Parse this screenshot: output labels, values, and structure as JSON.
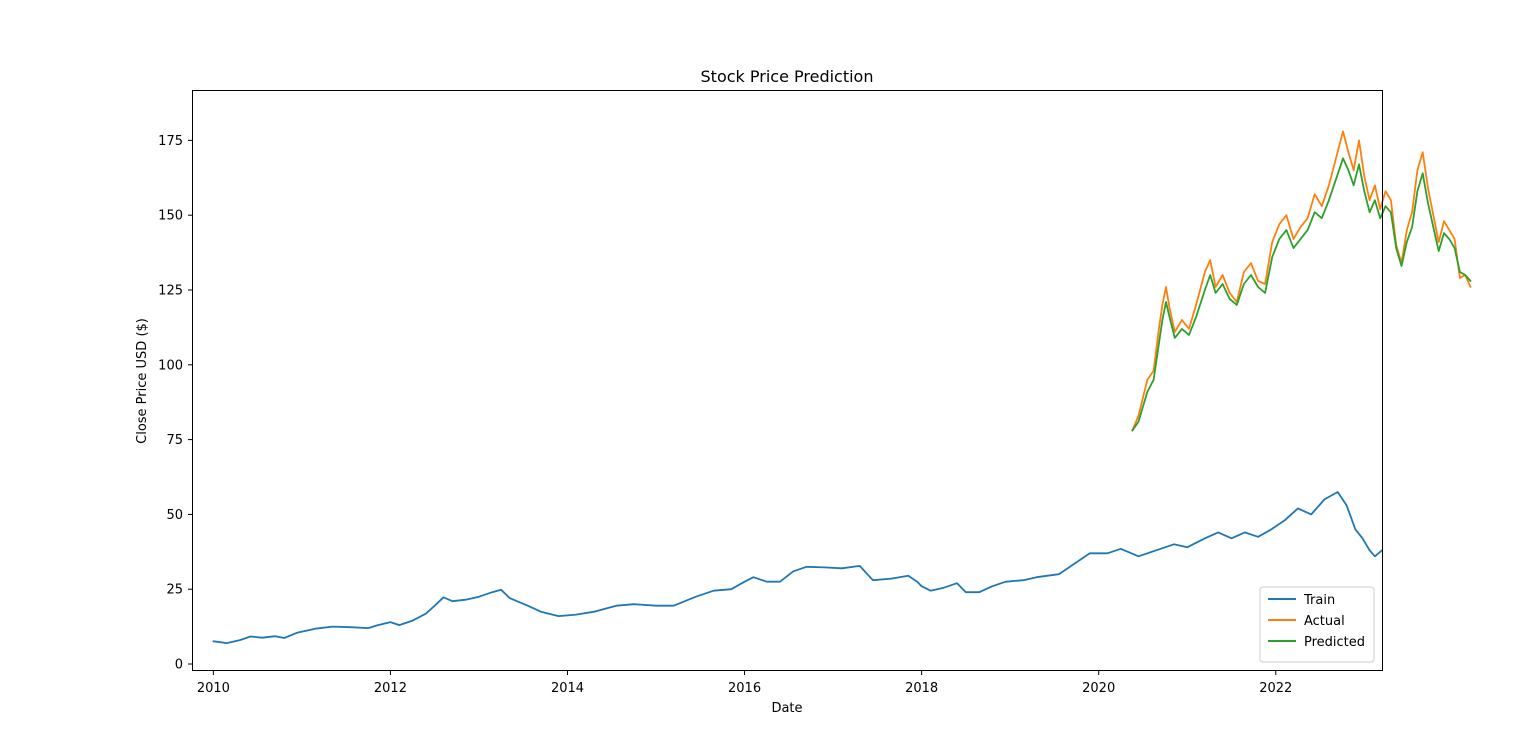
{
  "chart_data": {
    "type": "line",
    "title": "Stock Price Prediction",
    "xlabel": "Date",
    "ylabel": "Close Price USD ($)",
    "xlim": [
      2009.77,
      2023.2
    ],
    "ylim": [
      -2,
      191.5
    ],
    "xticks": [
      2010,
      2012,
      2014,
      2016,
      2018,
      2020,
      2022
    ],
    "yticks": [
      0,
      25,
      50,
      75,
      100,
      125,
      150,
      175
    ],
    "grid": false,
    "legend_position": "lower-right",
    "series": [
      {
        "name": "Train",
        "color": "#1f77b4",
        "points": [
          [
            2010.0,
            7.6
          ],
          [
            2010.08,
            7.3
          ],
          [
            2010.15,
            7.0
          ],
          [
            2010.3,
            8.0
          ],
          [
            2010.42,
            9.2
          ],
          [
            2010.55,
            8.8
          ],
          [
            2010.7,
            9.3
          ],
          [
            2010.8,
            8.7
          ],
          [
            2010.95,
            10.5
          ],
          [
            2011.15,
            11.8
          ],
          [
            2011.35,
            12.5
          ],
          [
            2011.55,
            12.3
          ],
          [
            2011.75,
            12.0
          ],
          [
            2011.85,
            12.9
          ],
          [
            2012.0,
            14.0
          ],
          [
            2012.1,
            13.0
          ],
          [
            2012.25,
            14.5
          ],
          [
            2012.4,
            16.8
          ],
          [
            2012.5,
            19.5
          ],
          [
            2012.6,
            22.3
          ],
          [
            2012.7,
            21.0
          ],
          [
            2012.85,
            21.5
          ],
          [
            2013.0,
            22.5
          ],
          [
            2013.15,
            24.0
          ],
          [
            2013.25,
            24.8
          ],
          [
            2013.35,
            22.0
          ],
          [
            2013.55,
            19.5
          ],
          [
            2013.7,
            17.5
          ],
          [
            2013.9,
            16.0
          ],
          [
            2014.1,
            16.5
          ],
          [
            2014.3,
            17.5
          ],
          [
            2014.55,
            19.5
          ],
          [
            2014.75,
            20.0
          ],
          [
            2015.0,
            19.5
          ],
          [
            2015.2,
            19.5
          ],
          [
            2015.45,
            22.5
          ],
          [
            2015.65,
            24.5
          ],
          [
            2015.85,
            25.0
          ],
          [
            2016.0,
            27.5
          ],
          [
            2016.1,
            29.0
          ],
          [
            2016.25,
            27.5
          ],
          [
            2016.4,
            27.5
          ],
          [
            2016.55,
            31.0
          ],
          [
            2016.7,
            32.5
          ],
          [
            2016.9,
            32.3
          ],
          [
            2017.1,
            32.0
          ],
          [
            2017.3,
            32.8
          ],
          [
            2017.45,
            28.0
          ],
          [
            2017.65,
            28.5
          ],
          [
            2017.85,
            29.5
          ],
          [
            2017.95,
            27.5
          ],
          [
            2018.0,
            26.0
          ],
          [
            2018.1,
            24.5
          ],
          [
            2018.25,
            25.5
          ],
          [
            2018.4,
            27.0
          ],
          [
            2018.5,
            24.0
          ],
          [
            2018.65,
            24.0
          ],
          [
            2018.8,
            26.0
          ],
          [
            2018.95,
            27.5
          ],
          [
            2019.15,
            28.0
          ],
          [
            2019.3,
            29.0
          ],
          [
            2019.55,
            30.0
          ],
          [
            2019.75,
            34.0
          ],
          [
            2019.9,
            37.0
          ],
          [
            2020.1,
            37.0
          ],
          [
            2020.25,
            38.5
          ],
          [
            2020.45,
            36.0
          ],
          [
            2020.65,
            38.0
          ],
          [
            2020.85,
            40.0
          ],
          [
            2021.0,
            39.0
          ],
          [
            2021.2,
            42.0
          ],
          [
            2021.35,
            44.0
          ],
          [
            2021.5,
            42.0
          ],
          [
            2021.65,
            44.0
          ],
          [
            2021.8,
            42.5
          ],
          [
            2021.95,
            45.0
          ],
          [
            2022.1,
            48.0
          ],
          [
            2022.25,
            52.0
          ],
          [
            2022.4,
            50.0
          ],
          [
            2022.55,
            55.0
          ],
          [
            2022.7,
            57.5
          ],
          [
            2022.8,
            53.0
          ],
          [
            2022.9,
            45.0
          ],
          [
            2022.98,
            42.0
          ],
          [
            2023.06,
            38.0
          ],
          [
            2023.12,
            36.0
          ],
          [
            2023.2,
            38.0
          ]
        ]
      },
      {
        "name": "Actual",
        "color": "#ff7f0e",
        "points": [
          [
            2020.38,
            78.0
          ],
          [
            2020.45,
            83.0
          ],
          [
            2020.55,
            95.0
          ],
          [
            2020.62,
            98.0
          ],
          [
            2020.68,
            112.0
          ],
          [
            2020.72,
            120.0
          ],
          [
            2020.76,
            126.0
          ],
          [
            2020.8,
            119.0
          ],
          [
            2020.86,
            111.0
          ],
          [
            2020.94,
            115.0
          ],
          [
            2021.02,
            112.0
          ],
          [
            2021.1,
            120.0
          ],
          [
            2021.2,
            131.0
          ],
          [
            2021.26,
            135.0
          ],
          [
            2021.32,
            126.0
          ],
          [
            2021.4,
            130.0
          ],
          [
            2021.48,
            124.0
          ],
          [
            2021.56,
            121.0
          ],
          [
            2021.64,
            131.0
          ],
          [
            2021.72,
            134.0
          ],
          [
            2021.8,
            128.0
          ],
          [
            2021.88,
            127.0
          ],
          [
            2021.96,
            141.0
          ],
          [
            2022.04,
            147.0
          ],
          [
            2022.12,
            150.0
          ],
          [
            2022.2,
            142.0
          ],
          [
            2022.28,
            146.0
          ],
          [
            2022.36,
            149.0
          ],
          [
            2022.44,
            157.0
          ],
          [
            2022.52,
            153.0
          ],
          [
            2022.6,
            160.0
          ],
          [
            2022.68,
            169.0
          ],
          [
            2022.76,
            178.0
          ],
          [
            2022.82,
            171.0
          ],
          [
            2022.88,
            165.0
          ],
          [
            2022.94,
            175.0
          ],
          [
            2023.0,
            163.0
          ],
          [
            2023.06,
            155.0
          ],
          [
            2023.12,
            160.0
          ],
          [
            2023.18,
            152.0
          ],
          [
            2023.24,
            158.0
          ],
          [
            2023.3,
            155.0
          ],
          [
            2023.36,
            140.0
          ],
          [
            2023.42,
            134.0
          ],
          [
            2023.48,
            145.0
          ],
          [
            2023.54,
            151.0
          ],
          [
            2023.6,
            165.0
          ],
          [
            2023.66,
            171.0
          ],
          [
            2023.72,
            159.0
          ],
          [
            2023.78,
            150.0
          ],
          [
            2023.84,
            141.0
          ],
          [
            2023.9,
            148.0
          ],
          [
            2023.96,
            145.0
          ],
          [
            2024.02,
            142.0
          ],
          [
            2024.08,
            129.0
          ],
          [
            2024.14,
            130.0
          ],
          [
            2024.2,
            126.0
          ]
        ]
      },
      {
        "name": "Predicted",
        "color": "#2ca02c",
        "points": [
          [
            2020.38,
            78.0
          ],
          [
            2020.45,
            81.0
          ],
          [
            2020.55,
            91.0
          ],
          [
            2020.62,
            95.0
          ],
          [
            2020.68,
            107.0
          ],
          [
            2020.72,
            115.0
          ],
          [
            2020.76,
            121.0
          ],
          [
            2020.8,
            116.0
          ],
          [
            2020.86,
            109.0
          ],
          [
            2020.94,
            112.0
          ],
          [
            2021.02,
            110.0
          ],
          [
            2021.1,
            116.0
          ],
          [
            2021.2,
            125.0
          ],
          [
            2021.26,
            130.0
          ],
          [
            2021.32,
            124.0
          ],
          [
            2021.4,
            127.0
          ],
          [
            2021.48,
            122.0
          ],
          [
            2021.56,
            120.0
          ],
          [
            2021.64,
            127.0
          ],
          [
            2021.72,
            130.0
          ],
          [
            2021.8,
            126.0
          ],
          [
            2021.88,
            124.0
          ],
          [
            2021.96,
            136.0
          ],
          [
            2022.04,
            142.0
          ],
          [
            2022.12,
            145.0
          ],
          [
            2022.2,
            139.0
          ],
          [
            2022.28,
            142.0
          ],
          [
            2022.36,
            145.0
          ],
          [
            2022.44,
            151.0
          ],
          [
            2022.52,
            149.0
          ],
          [
            2022.6,
            155.0
          ],
          [
            2022.68,
            162.0
          ],
          [
            2022.76,
            169.0
          ],
          [
            2022.82,
            165.0
          ],
          [
            2022.88,
            160.0
          ],
          [
            2022.94,
            167.0
          ],
          [
            2023.0,
            158.0
          ],
          [
            2023.06,
            151.0
          ],
          [
            2023.12,
            155.0
          ],
          [
            2023.18,
            149.0
          ],
          [
            2023.24,
            153.0
          ],
          [
            2023.3,
            151.0
          ],
          [
            2023.36,
            139.0
          ],
          [
            2023.42,
            133.0
          ],
          [
            2023.48,
            141.0
          ],
          [
            2023.54,
            146.0
          ],
          [
            2023.6,
            158.0
          ],
          [
            2023.66,
            164.0
          ],
          [
            2023.72,
            154.0
          ],
          [
            2023.78,
            146.0
          ],
          [
            2023.84,
            138.0
          ],
          [
            2023.9,
            144.0
          ],
          [
            2023.96,
            142.0
          ],
          [
            2024.02,
            139.0
          ],
          [
            2024.08,
            131.0
          ],
          [
            2024.14,
            130.0
          ],
          [
            2024.2,
            128.0
          ]
        ]
      }
    ]
  }
}
